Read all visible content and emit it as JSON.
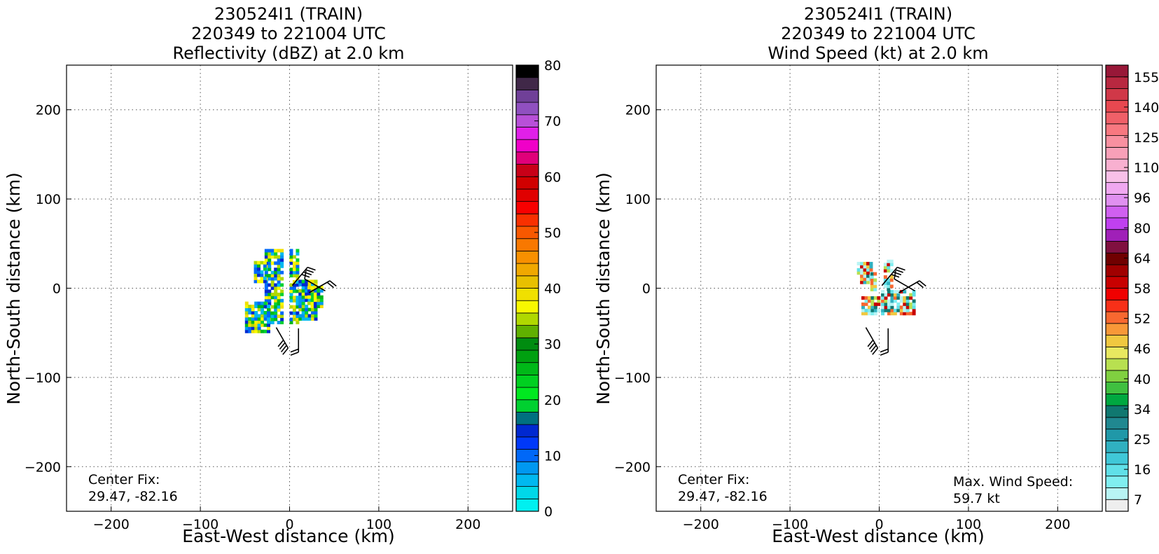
{
  "chart_data": [
    {
      "type": "heatmap",
      "title": [
        "230524I1 (TRAIN)",
        "220349 to 221004 UTC",
        "Reflectivity (dBZ) at 2.0 km"
      ],
      "xlabel": "East-West distance (km)",
      "ylabel": "North-South distance (km)",
      "xlim": [
        -250,
        250
      ],
      "ylim": [
        -250,
        250
      ],
      "xticks": [
        -200,
        -100,
        0,
        100,
        200
      ],
      "yticks": [
        200,
        100,
        0,
        -100,
        -200
      ],
      "xtick_labels": [
        "−200",
        "−100",
        "0",
        "100",
        "200"
      ],
      "ytick_labels": [
        "200",
        "100",
        "0",
        "−100",
        "−200"
      ],
      "grid": true,
      "annotation": [
        "Center Fix:",
        "29.47, -82.16"
      ],
      "colorbar": {
        "range": [
          0,
          80
        ],
        "step": 2.5,
        "ticks": [
          "0",
          "10",
          "20",
          "30",
          "40",
          "50",
          "60",
          "70",
          "80"
        ],
        "colors": [
          "#00f0f0",
          "#00d8e8",
          "#00b8f0",
          "#0098f0",
          "#0068f8",
          "#0038f8",
          "#0028d0",
          "#007080",
          "#00d030",
          "#00e820",
          "#00d020",
          "#00b818",
          "#00a010",
          "#008c10",
          "#60b000",
          "#b0d800",
          "#f8f800",
          "#f0e000",
          "#e8c000",
          "#f0a800",
          "#f89000",
          "#f87800",
          "#f85800",
          "#f83000",
          "#f80000",
          "#e00000",
          "#d00000",
          "#c80018",
          "#e0007a",
          "#f000c8",
          "#e020e8",
          "#b850d8",
          "#9050c0",
          "#704098",
          "#402848",
          "#000000"
        ]
      },
      "echo_colors": [
        "#0028d0",
        "#0068f8",
        "#0098f0",
        "#00b8f0",
        "#00d030",
        "#00b818",
        "#b0d800",
        "#f8f800",
        "#f0e000"
      ],
      "wind_barbs": [
        {
          "x": 3,
          "y": 3,
          "dir": 40,
          "speed": 40
        },
        {
          "x": 22,
          "y": -5,
          "dir": 60,
          "speed": 20
        },
        {
          "x": 40,
          "y": -3,
          "dir": 300,
          "speed": 10
        },
        {
          "x": -15,
          "y": -44,
          "dir": 150,
          "speed": 40
        },
        {
          "x": 10,
          "y": -45,
          "dir": 180,
          "speed": 20
        }
      ]
    },
    {
      "type": "heatmap",
      "title": [
        "230524I1 (TRAIN)",
        "220349 to 221004 UTC",
        "Wind Speed (kt) at 2.0 km"
      ],
      "xlabel": "East-West distance (km)",
      "ylabel": "North-South distance (km)",
      "xlim": [
        -250,
        250
      ],
      "ylim": [
        -250,
        250
      ],
      "xticks": [
        -200,
        -100,
        0,
        100,
        200
      ],
      "yticks": [
        200,
        100,
        0,
        -100,
        -200
      ],
      "xtick_labels": [
        "−200",
        "−100",
        "0",
        "100",
        "200"
      ],
      "ytick_labels": [
        "200",
        "100",
        "0",
        "−100",
        "−200"
      ],
      "grid": true,
      "annotation": [
        "Center Fix:",
        "29.47, -82.16"
      ],
      "annotation_right": [
        "Max. Wind Speed:",
        "59.7 kt"
      ],
      "colorbar": {
        "ticks": [
          "7",
          "16",
          "25",
          "34",
          "40",
          "46",
          "52",
          "58",
          "64",
          "80",
          "96",
          "110",
          "125",
          "140",
          "155"
        ],
        "colors": [
          "#eeeeee",
          "#b8f4f4",
          "#80eef0",
          "#60e0e8",
          "#40c8d8",
          "#30b0c0",
          "#2098a8",
          "#208890",
          "#107870",
          "#00a840",
          "#40c040",
          "#80d040",
          "#b8e050",
          "#e8e860",
          "#f0c840",
          "#f89838",
          "#f86830",
          "#f83018",
          "#f00000",
          "#c80000",
          "#a00000",
          "#700000",
          "#801040",
          "#a020b8",
          "#c040f0",
          "#d060f0",
          "#e090f0",
          "#f0a8f0",
          "#f8c0e8",
          "#f8b0d0",
          "#f8a0b8",
          "#f890a0",
          "#f87880",
          "#f06068",
          "#e84850",
          "#d03848",
          "#b82840",
          "#981838"
        ]
      },
      "echo_colors": [
        "#b8f4f4",
        "#80eef0",
        "#60e0e8",
        "#30b0c0",
        "#107870",
        "#f0c840",
        "#f86830",
        "#c80000",
        "#b8e050"
      ],
      "wind_barbs": [
        {
          "x": 3,
          "y": 3,
          "dir": 40,
          "speed": 40
        },
        {
          "x": 22,
          "y": -5,
          "dir": 60,
          "speed": 20
        },
        {
          "x": 40,
          "y": -3,
          "dir": 300,
          "speed": 10
        },
        {
          "x": -15,
          "y": -44,
          "dir": 150,
          "speed": 40
        },
        {
          "x": 10,
          "y": -45,
          "dir": 180,
          "speed": 20
        }
      ]
    }
  ]
}
